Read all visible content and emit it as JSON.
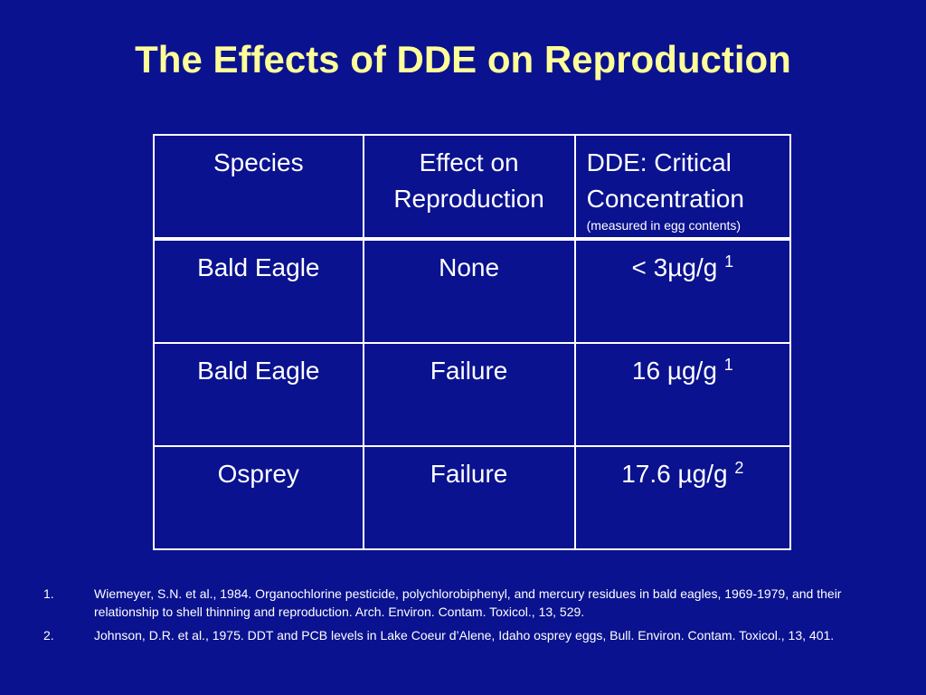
{
  "slide": {
    "title": "The Effects of DDE on Reproduction",
    "background_color": "#0a128f",
    "title_color": "#ffff99"
  },
  "table": {
    "headers": {
      "species": "Species",
      "effect_line1": "Effect on",
      "effect_line2": "Reproduction",
      "dde_line1": "DDE: Critical",
      "dde_line2": "Concentration",
      "dde_note": "(measured in egg contents)"
    },
    "rows": [
      {
        "species": "Bald Eagle",
        "effect": "None",
        "concentration": "< 3µg/g ",
        "ref": "1"
      },
      {
        "species": "Bald Eagle",
        "effect": "Failure",
        "concentration": "16 µg/g ",
        "ref": "1"
      },
      {
        "species": "Osprey",
        "effect": "Failure",
        "concentration": "17.6 µg/g ",
        "ref": "2"
      }
    ]
  },
  "references": [
    {
      "number": "1.",
      "text": "Wiemeyer, S.N. et al., 1984. Organochlorine pesticide, polychlorobiphenyl, and mercury residues in bald eagles, 1969-1979, and their relationship to shell thinning and reproduction. Arch. Environ. Contam. Toxicol., 13, 529."
    },
    {
      "number": "2.",
      "text": "Johnson, D.R. et al., 1975. DDT and PCB levels in Lake Coeur d’Alene, Idaho osprey eggs, Bull. Environ. Contam. Toxicol., 13, 401."
    }
  ]
}
